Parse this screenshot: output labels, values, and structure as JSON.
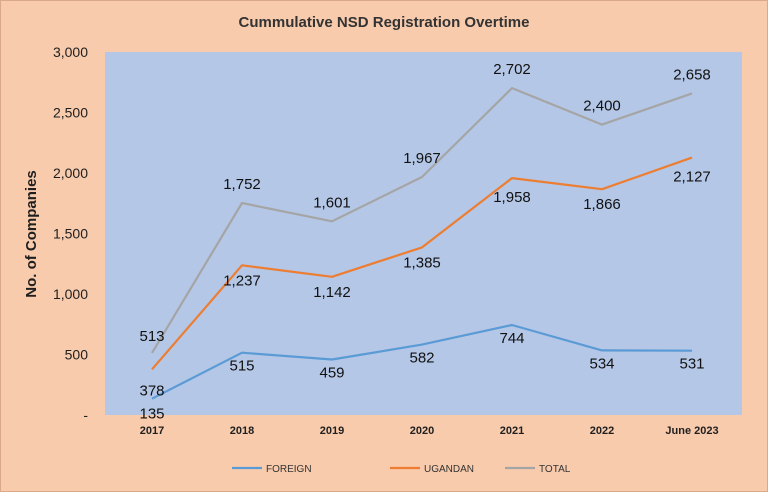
{
  "chart_data": {
    "type": "line",
    "title": "Cummulative NSD Registration Overtime",
    "xlabel": "",
    "ylabel": "No. of Companies",
    "categories": [
      "2017",
      "2018",
      "2019",
      "2020",
      "2021",
      "2022",
      "June 2023"
    ],
    "y_ticks": [
      "-",
      "500",
      "1,000",
      "1,500",
      "2,000",
      "2,500",
      "3,000"
    ],
    "ylim": [
      0,
      3000
    ],
    "grid": false,
    "legend_position": "bottom",
    "plot_background": "#b4c7e7",
    "series": [
      {
        "name": "FOREIGN",
        "color": "#5b9bd5",
        "values": [
          135,
          515,
          459,
          582,
          744,
          534,
          531
        ],
        "labels": [
          "135",
          "515",
          "459",
          "582",
          "744",
          "534",
          "531"
        ]
      },
      {
        "name": "UGANDAN",
        "color": "#ed7d31",
        "values": [
          378,
          1237,
          1142,
          1385,
          1958,
          1866,
          2127
        ],
        "labels": [
          "378",
          "1,237",
          "1,142",
          "1,385",
          "1,958",
          "1,866",
          "2,127"
        ]
      },
      {
        "name": "TOTAL",
        "color": "#a5a5a5",
        "values": [
          513,
          1752,
          1601,
          1967,
          2702,
          2400,
          2658
        ],
        "labels": [
          "513",
          "1,752",
          "1,601",
          "1,967",
          "2,702",
          "2,400",
          "2,658"
        ]
      }
    ]
  }
}
